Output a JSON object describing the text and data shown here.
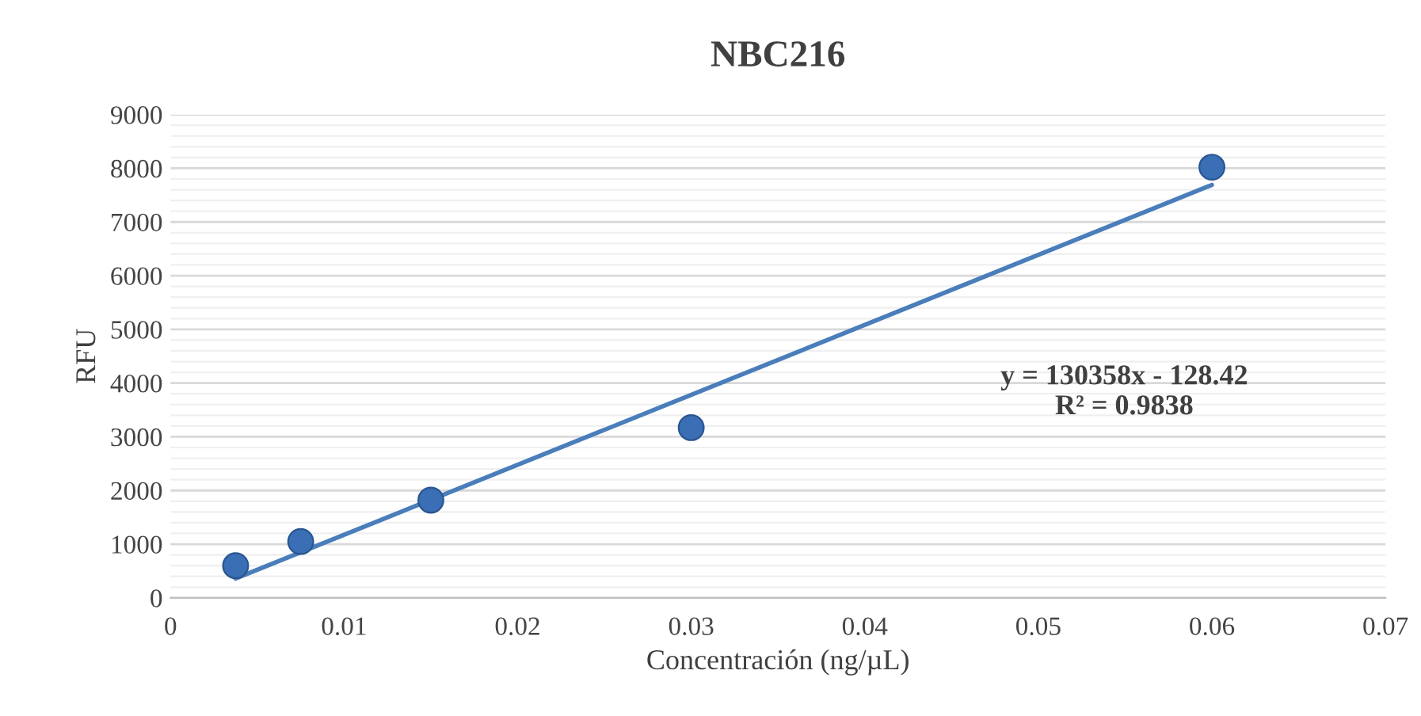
{
  "chart_data": {
    "type": "scatter",
    "title": "NBC216",
    "xlabel": "Concentración (ng/µL)",
    "ylabel": "RFU",
    "series": [
      {
        "color": "#3a6fb5",
        "x": [
          0.00375,
          0.0075,
          0.015,
          0.03,
          0.06
        ],
        "values": [
          600,
          1050,
          1820,
          3170,
          8020
        ],
        "marker": "circle"
      },
      {
        "type": "line",
        "color": "#4a7ebb",
        "x": [
          0.00375,
          0.06
        ],
        "values": [
          360,
          7690
        ],
        "marker": "none",
        "line_style": "solid"
      }
    ],
    "annotations": [
      "y = 130358x - 128.42\nR² = 0.9838"
    ],
    "xlim": [
      0,
      0.07
    ],
    "xticks": [
      0,
      0.01,
      0.02,
      0.03,
      0.04,
      0.05,
      0.06,
      0.07
    ],
    "ylim": [
      0,
      9000
    ],
    "yticks": [
      0,
      1000,
      2000,
      3000,
      4000,
      5000,
      6000,
      7000,
      8000,
      9000
    ],
    "grid": "y",
    "legend": false
  }
}
